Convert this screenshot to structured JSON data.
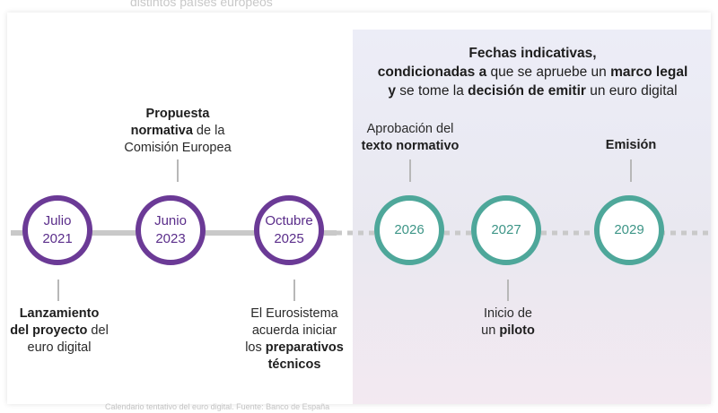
{
  "top_clipped_text": "distintos países europeos",
  "caption": "Calendario tentativo del euro digital. Fuente: Banco de España",
  "header": {
    "l1_b": "Fechas indicativas,",
    "l2_b1": "condicionadas a",
    "l2_t1": " que se apruebe un ",
    "l2_b2": "marco legal",
    "l3_b1": "y",
    "l3_t1": " se tome la ",
    "l3_b2": "decisión de emitir",
    "l3_t2": " un euro digital"
  },
  "milestones": [
    {
      "line1": "Julio",
      "line2": "2021",
      "status": "past"
    },
    {
      "line1": "Junio",
      "line2": "2023",
      "status": "past"
    },
    {
      "line1": "Octubre",
      "line2": "2025",
      "status": "past"
    },
    {
      "line1": "2026",
      "line2": "",
      "status": "indicative"
    },
    {
      "line1": "2027",
      "line2": "",
      "status": "indicative"
    },
    {
      "line1": "2029",
      "line2": "",
      "status": "indicative"
    }
  ],
  "notes": {
    "m1": {
      "b1": "Lanzamiento",
      "b2": "del proyecto",
      "t1": " del",
      "t2": "euro digital"
    },
    "m2": {
      "b1": "Propuesta",
      "b2": "normativa",
      "t1": " de la",
      "t2": "Comisión Europea"
    },
    "m3": {
      "t1": "El Eurosistema",
      "t2": "acuerda iniciar",
      "t3": "los ",
      "b1": "preparativos",
      "b2": "técnicos"
    },
    "m4": {
      "t1": "Aprobación del",
      "b1": "texto normativo"
    },
    "m5": {
      "t1": "Inicio de",
      "t2": "un ",
      "b1": "piloto"
    },
    "m6": {
      "b1": "Emisión"
    }
  },
  "colors": {
    "past": "#6b3a96",
    "indicative": "#4ea79a",
    "panel": "#ecedf7",
    "timeline": "#c9c9c9"
  }
}
